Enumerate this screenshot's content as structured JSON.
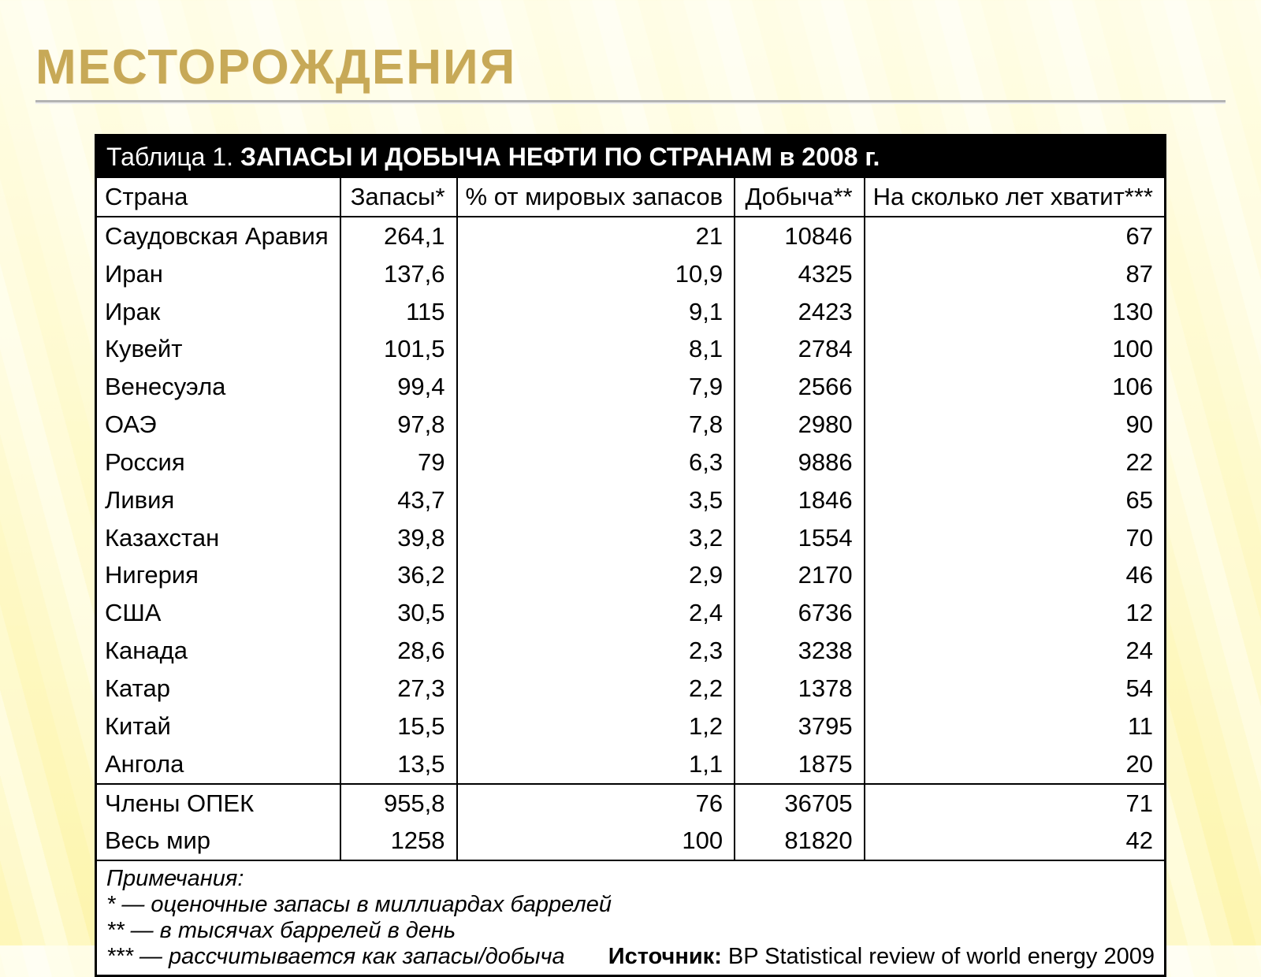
{
  "title": "МЕСТОРОЖДЕНИЯ",
  "table": {
    "caption_prefix": "Таблица 1. ",
    "caption_main": "ЗАПАСЫ И ДОБЫЧА НЕФТИ ПО СТРАНАМ в 2008 г.",
    "columns": [
      "Страна",
      "Запасы*",
      "% от мировых запасов",
      "Добыча**",
      "На сколько лет хватит***"
    ],
    "column_align": [
      "left",
      "right",
      "right",
      "right",
      "right"
    ],
    "rows": [
      [
        "Саудовская Аравия",
        "264,1",
        "21",
        "10846",
        "67"
      ],
      [
        "Иран",
        "137,6",
        "10,9",
        "4325",
        "87"
      ],
      [
        "Ирак",
        "115",
        "9,1",
        "2423",
        "130"
      ],
      [
        "Кувейт",
        "101,5",
        "8,1",
        "2784",
        "100"
      ],
      [
        "Венесуэла",
        "99,4",
        "7,9",
        "2566",
        "106"
      ],
      [
        "ОАЭ",
        "97,8",
        "7,8",
        "2980",
        "90"
      ],
      [
        "Россия",
        "79",
        "6,3",
        "9886",
        "22"
      ],
      [
        "Ливия",
        "43,7",
        "3,5",
        "1846",
        "65"
      ],
      [
        "Казахстан",
        "39,8",
        "3,2",
        "1554",
        "70"
      ],
      [
        "Нигерия",
        "36,2",
        "2,9",
        "2170",
        "46"
      ],
      [
        "США",
        "30,5",
        "2,4",
        "6736",
        "12"
      ],
      [
        "Канада",
        "28,6",
        "2,3",
        "3238",
        "24"
      ],
      [
        "Катар",
        "27,3",
        "2,2",
        "1378",
        "54"
      ],
      [
        "Китай",
        "15,5",
        "1,2",
        "3795",
        "11"
      ],
      [
        "Ангола",
        "13,5",
        "1,1",
        "1875",
        "20"
      ]
    ],
    "summary_rows": [
      [
        "Члены ОПЕК",
        "955,8",
        "76",
        "36705",
        "71"
      ],
      [
        "Весь мир",
        "1258",
        "100",
        "81820",
        "42"
      ]
    ],
    "notes_heading": "Примечания:",
    "notes": [
      "* — оценочные запасы в миллиардах баррелей",
      "** — в тысячах баррелей в день",
      "*** — рассчитывается как запасы/добыча"
    ],
    "source_label": "Источник:",
    "source_text": "BP Statistical review of world energy 2009",
    "colors": {
      "header_bg": "#000000",
      "header_fg": "#ffffff",
      "border": "#000000",
      "cell_bg": "#ffffff",
      "title_color": "#c7a957"
    },
    "font_sizes_pt": {
      "page_title": 46,
      "table_title": 24,
      "cell": 23,
      "notes": 22
    }
  }
}
